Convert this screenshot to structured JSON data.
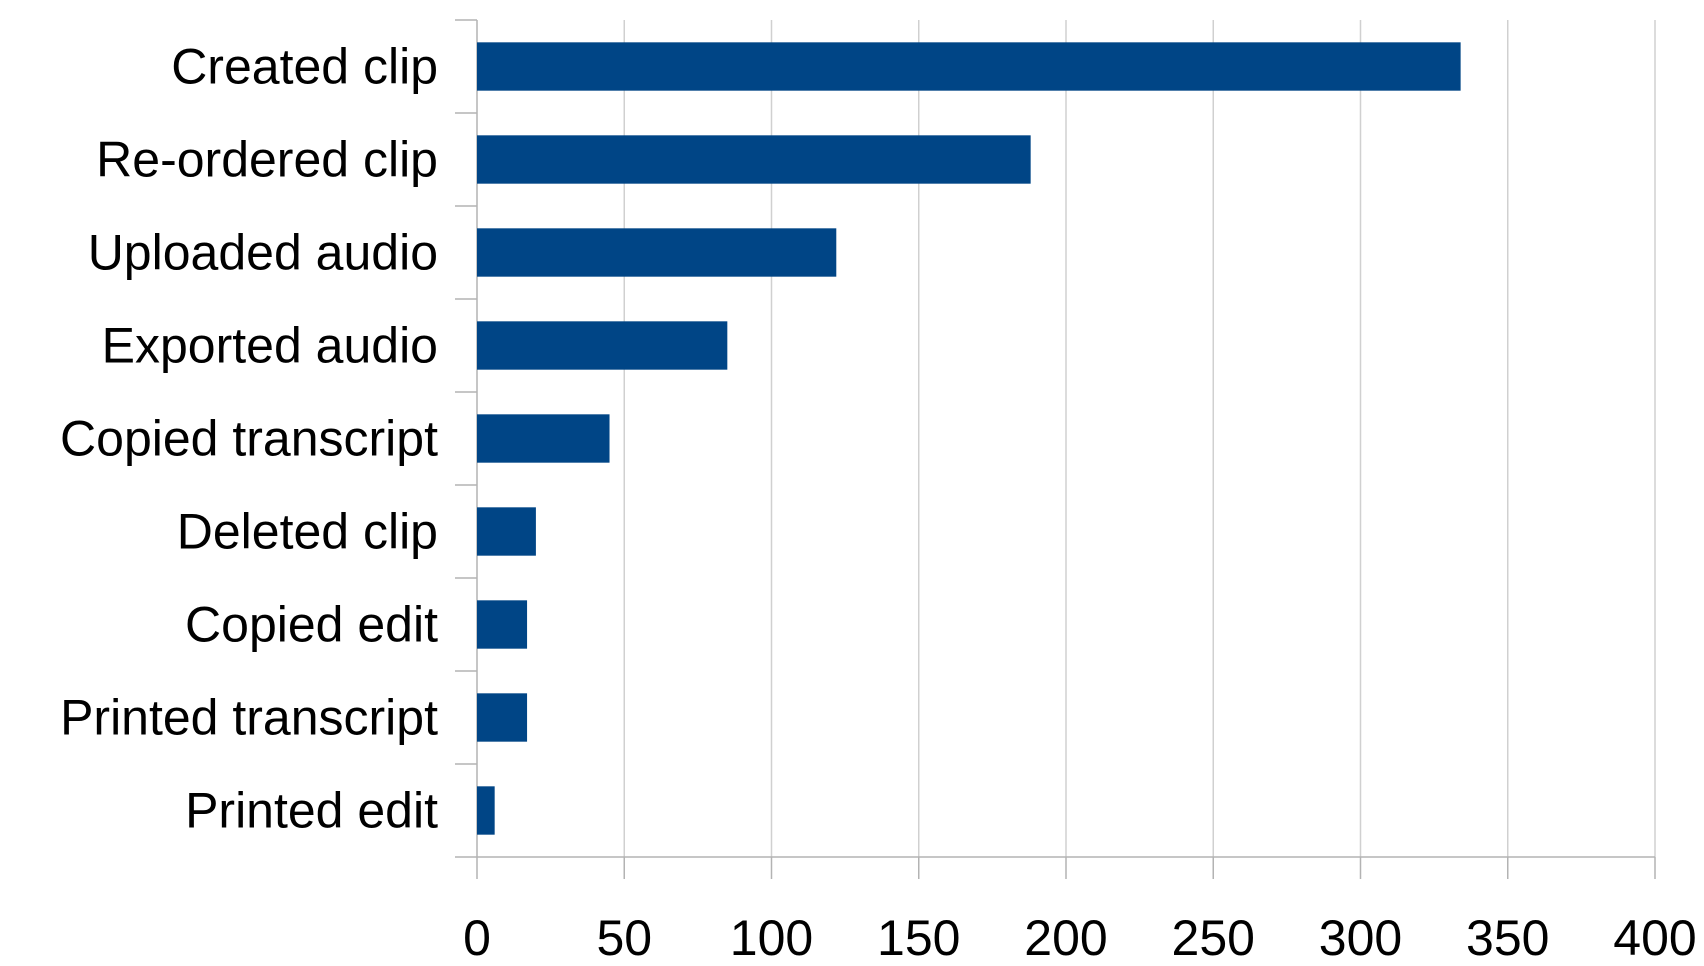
{
  "chart_data": {
    "type": "bar",
    "orientation": "horizontal",
    "categories": [
      "Created clip",
      "Re-ordered clip",
      "Uploaded audio",
      "Exported audio",
      "Copied transcript",
      "Deleted clip",
      "Copied edit",
      "Printed transcript",
      "Printed edit"
    ],
    "values": [
      334,
      188,
      122,
      85,
      45,
      20,
      17,
      17,
      6
    ],
    "x_ticks": [
      "0",
      "50",
      "100",
      "150",
      "200",
      "250",
      "300",
      "350",
      "400"
    ],
    "xlim": [
      0,
      400
    ],
    "grid": "vertical",
    "legend": "none",
    "title": "",
    "xlabel": "",
    "ylabel": "",
    "colors": {
      "bar": "#004586",
      "grid": "#d0d0d0",
      "axis": "#b3b3b3"
    }
  }
}
